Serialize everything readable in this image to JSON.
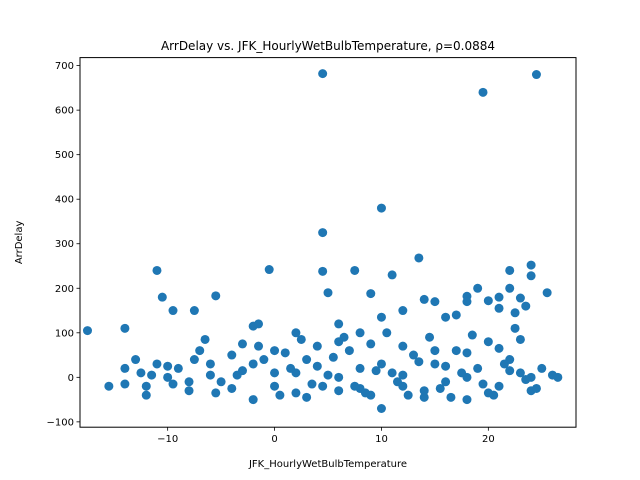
{
  "chart_data": {
    "type": "scatter",
    "title": "ArrDelay vs. JFK_HourlyWetBulbTemperature, ρ=0.0884",
    "xlabel": "JFK_HourlyWetBulbTemperature",
    "ylabel": "ArrDelay",
    "xlim": [
      -18.2,
      28.2
    ],
    "ylim": [
      -112,
      718
    ],
    "xticks": [
      -10,
      0,
      10,
      20
    ],
    "yticks": [
      -100,
      0,
      100,
      200,
      300,
      400,
      500,
      600,
      700
    ],
    "grid": false,
    "legend": "none",
    "marker_color": "#1f77b4",
    "series": [
      {
        "points": [
          [
            -17.5,
            105
          ],
          [
            -14,
            110
          ],
          [
            -14,
            20
          ],
          [
            -15.5,
            -20
          ],
          [
            -14,
            -15
          ],
          [
            -11,
            240
          ],
          [
            -10.5,
            180
          ],
          [
            -9.5,
            150
          ],
          [
            -7.5,
            150
          ],
          [
            -6.5,
            85
          ],
          [
            -5.5,
            183
          ],
          [
            -2,
            115
          ],
          [
            -1.5,
            120
          ],
          [
            -0.5,
            242
          ],
          [
            2,
            100
          ],
          [
            4.5,
            682
          ],
          [
            4.5,
            325
          ],
          [
            4.5,
            238
          ],
          [
            5,
            190
          ],
          [
            6,
            120
          ],
          [
            7.5,
            240
          ],
          [
            8,
            100
          ],
          [
            9,
            188
          ],
          [
            10,
            380
          ],
          [
            10,
            135
          ],
          [
            11,
            230
          ],
          [
            12,
            150
          ],
          [
            13.5,
            268
          ],
          [
            14,
            175
          ],
          [
            15,
            170
          ],
          [
            16,
            135
          ],
          [
            17,
            140
          ],
          [
            18,
            182
          ],
          [
            18,
            170
          ],
          [
            19,
            200
          ],
          [
            19.5,
            640
          ],
          [
            20,
            172
          ],
          [
            21,
            180
          ],
          [
            21,
            155
          ],
          [
            22,
            240
          ],
          [
            22,
            200
          ],
          [
            22.5,
            145
          ],
          [
            23,
            178
          ],
          [
            23.5,
            160
          ],
          [
            24,
            252
          ],
          [
            24,
            228
          ],
          [
            24.5,
            680
          ],
          [
            25.5,
            190
          ],
          [
            26.5,
            0
          ],
          [
            -13,
            40
          ],
          [
            -12.5,
            10
          ],
          [
            -12,
            -40
          ],
          [
            -11,
            30
          ],
          [
            -10,
            0
          ],
          [
            -9,
            20
          ],
          [
            -8,
            -30
          ],
          [
            -7,
            60
          ],
          [
            -6,
            30
          ],
          [
            -5,
            -10
          ],
          [
            -4,
            50
          ],
          [
            -3,
            15
          ],
          [
            -2,
            -50
          ],
          [
            -1,
            40
          ],
          [
            0,
            -20
          ],
          [
            1,
            55
          ],
          [
            2,
            10
          ],
          [
            3,
            -45
          ],
          [
            4,
            70
          ],
          [
            5,
            5
          ],
          [
            6,
            -30
          ],
          [
            7,
            60
          ],
          [
            8,
            20
          ],
          [
            9,
            -40
          ],
          [
            10,
            -70
          ],
          [
            11,
            10
          ],
          [
            12,
            -20
          ],
          [
            13,
            50
          ],
          [
            14,
            -45
          ],
          [
            15,
            30
          ],
          [
            16,
            -10
          ],
          [
            17,
            60
          ],
          [
            18,
            -50
          ],
          [
            19,
            20
          ],
          [
            20,
            80
          ],
          [
            21,
            -20
          ],
          [
            22,
            40
          ],
          [
            23,
            10
          ],
          [
            24,
            -30
          ],
          [
            25,
            20
          ],
          [
            26,
            5
          ],
          [
            -12,
            -20
          ],
          [
            -10,
            25
          ],
          [
            -8,
            -10
          ],
          [
            -6,
            5
          ],
          [
            -4,
            -25
          ],
          [
            -2,
            30
          ],
          [
            0,
            10
          ],
          [
            2,
            -35
          ],
          [
            4,
            25
          ],
          [
            6,
            0
          ],
          [
            8,
            -25
          ],
          [
            10,
            30
          ],
          [
            12,
            5
          ],
          [
            14,
            -30
          ],
          [
            16,
            25
          ],
          [
            18,
            0
          ],
          [
            20,
            -35
          ],
          [
            22,
            15
          ],
          [
            24,
            0
          ],
          [
            1.5,
            20
          ],
          [
            3.5,
            -15
          ],
          [
            5.5,
            45
          ],
          [
            7.5,
            -20
          ],
          [
            9.5,
            15
          ],
          [
            11.5,
            -10
          ],
          [
            13.5,
            35
          ],
          [
            15.5,
            -25
          ],
          [
            17.5,
            10
          ],
          [
            19.5,
            -15
          ],
          [
            21.5,
            30
          ],
          [
            23.5,
            -5
          ],
          [
            -9.5,
            -15
          ],
          [
            -7.5,
            40
          ],
          [
            -5.5,
            -35
          ],
          [
            -3.5,
            5
          ],
          [
            -1.5,
            70
          ],
          [
            0.5,
            -40
          ],
          [
            2.5,
            85
          ],
          [
            4.5,
            -20
          ],
          [
            6.5,
            90
          ],
          [
            8.5,
            -35
          ],
          [
            10.5,
            100
          ],
          [
            12.5,
            -40
          ],
          [
            14.5,
            90
          ],
          [
            16.5,
            -45
          ],
          [
            18.5,
            95
          ],
          [
            20.5,
            -40
          ],
          [
            22.5,
            110
          ],
          [
            24.5,
            -25
          ],
          [
            -11.5,
            5
          ],
          [
            6,
            80
          ],
          [
            9,
            75
          ],
          [
            12,
            70
          ],
          [
            15,
            60
          ],
          [
            18,
            55
          ],
          [
            21,
            65
          ],
          [
            23,
            85
          ],
          [
            3,
            40
          ],
          [
            0,
            60
          ],
          [
            -3,
            75
          ]
        ]
      }
    ]
  }
}
